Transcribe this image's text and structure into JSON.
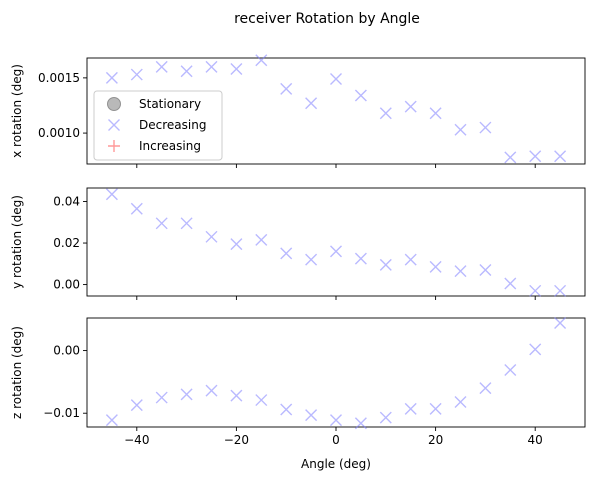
{
  "chart_data": {
    "type": "scatter",
    "title": "receiver Rotation by Angle",
    "xlabel": "Angle (deg)",
    "xlim": [
      -50,
      50
    ],
    "xticks": [
      -40,
      -20,
      0,
      20,
      40
    ],
    "legend": {
      "placement": "upper-left of top panel",
      "entries": [
        {
          "label": "Stationary",
          "marker": "circle",
          "color": "#808080"
        },
        {
          "label": "Decreasing",
          "marker": "x",
          "color": "#8080ff"
        },
        {
          "label": "Increasing",
          "marker": "plus",
          "color": "#ff9999"
        }
      ]
    },
    "x": [
      -45,
      -40,
      -35,
      -30,
      -25,
      -20,
      -15,
      -10,
      -5,
      0,
      5,
      10,
      15,
      20,
      25,
      30,
      35,
      40,
      45
    ],
    "panels": [
      {
        "ylabel": "x rotation (deg)",
        "ylim": [
          0.00072,
          0.00168
        ],
        "yticks": [
          0.001,
          0.0015
        ],
        "ytick_labels": [
          "0.0010",
          "0.0015"
        ],
        "series": [
          {
            "name": "Decreasing",
            "values": [
              0.0015,
              0.00153,
              0.0016,
              0.00156,
              0.0016,
              0.00158,
              0.00166,
              0.0014,
              0.00127,
              0.00149,
              0.00134,
              0.00118,
              0.00124,
              0.00118,
              0.00103,
              0.00105,
              0.00078,
              0.00079,
              0.00079
            ]
          }
        ]
      },
      {
        "ylabel": "y rotation (deg)",
        "ylim": [
          -0.0055,
          0.0465
        ],
        "yticks": [
          0.0,
          0.02,
          0.04
        ],
        "ytick_labels": [
          "0.00",
          "0.02",
          "0.04"
        ],
        "series": [
          {
            "name": "Decreasing",
            "values": [
              0.0435,
              0.0365,
              0.0295,
              0.0295,
              0.023,
              0.0195,
              0.0215,
              0.015,
              0.012,
              0.016,
              0.0125,
              0.0095,
              0.012,
              0.0085,
              0.0065,
              0.007,
              0.0005,
              -0.003,
              -0.003
            ]
          }
        ]
      },
      {
        "ylabel": "z rotation (deg)",
        "ylim": [
          -0.0122,
          0.0052
        ],
        "yticks": [
          -0.01,
          0.0
        ],
        "ytick_labels": [
          "−0.01",
          "0.00"
        ],
        "series": [
          {
            "name": "Decreasing",
            "values": [
              -0.0111,
              -0.0087,
              -0.0075,
              -0.007,
              -0.0064,
              -0.0072,
              -0.0079,
              -0.0094,
              -0.0103,
              -0.0111,
              -0.0116,
              -0.0107,
              -0.0093,
              -0.0093,
              -0.0082,
              -0.006,
              -0.0031,
              0.0002,
              0.0044
            ]
          }
        ]
      }
    ]
  }
}
